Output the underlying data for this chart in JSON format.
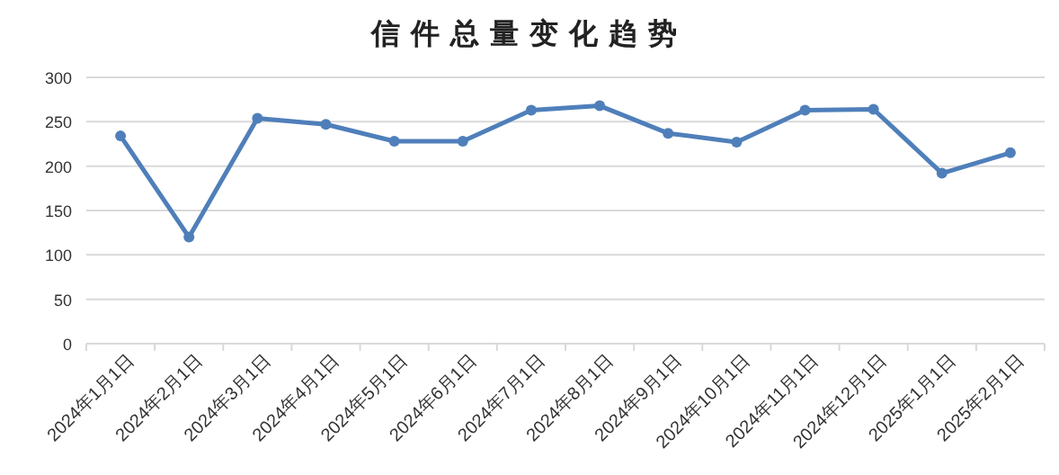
{
  "chart_data": {
    "type": "line",
    "title": "信件总量变化趋势",
    "categories": [
      "2024年1月1日",
      "2024年2月1日",
      "2024年3月1日",
      "2024年4月1日",
      "2024年5月1日",
      "2024年6月1日",
      "2024年7月1日",
      "2024年8月1日",
      "2024年9月1日",
      "2024年10月1日",
      "2024年11月1日",
      "2024年12月1日",
      "2025年1月1日",
      "2025年2月1日"
    ],
    "series": [
      {
        "color": "#4f7fba",
        "values": [
          234,
          120,
          254,
          247,
          228,
          228,
          263,
          268,
          237,
          227,
          263,
          264,
          192,
          215
        ]
      }
    ],
    "ylim": [
      0,
      300
    ],
    "yticks": [
      0,
      50,
      100,
      150,
      200,
      250,
      300
    ],
    "grid": "y",
    "marker": "circle",
    "line_style": "solid"
  }
}
